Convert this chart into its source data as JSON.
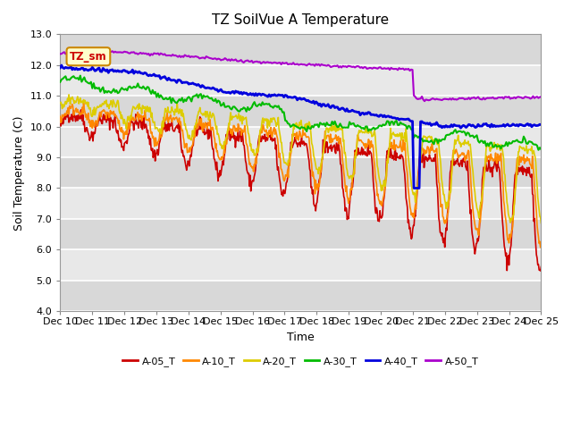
{
  "title": "TZ SoilVue A Temperature",
  "xlabel": "Time",
  "ylabel": "Soil Temperature (C)",
  "ylim": [
    4.0,
    13.0
  ],
  "yticks": [
    4.0,
    5.0,
    6.0,
    7.0,
    8.0,
    9.0,
    10.0,
    11.0,
    12.0,
    13.0
  ],
  "xtick_labels": [
    "Dec 10",
    "Dec 11",
    "Dec 12",
    "Dec 13",
    "Dec 14",
    "Dec 15",
    "Dec 16",
    "Dec 17",
    "Dec 18",
    "Dec 19",
    "Dec 20",
    "Dec 21",
    "Dec 22",
    "Dec 23",
    "Dec 24",
    "Dec 25"
  ],
  "series": {
    "A-05_T": {
      "color": "#cc0000",
      "linewidth": 1.2
    },
    "A-10_T": {
      "color": "#ff8800",
      "linewidth": 1.2
    },
    "A-20_T": {
      "color": "#ddcc00",
      "linewidth": 1.2
    },
    "A-30_T": {
      "color": "#00bb00",
      "linewidth": 1.5
    },
    "A-40_T": {
      "color": "#0000dd",
      "linewidth": 2.0
    },
    "A-50_T": {
      "color": "#aa00cc",
      "linewidth": 1.5
    }
  },
  "legend_entries": [
    "A-05_T",
    "A-10_T",
    "A-20_T",
    "A-30_T",
    "A-40_T",
    "A-50_T"
  ],
  "legend_colors": [
    "#cc0000",
    "#ff8800",
    "#ddcc00",
    "#00bb00",
    "#0000dd",
    "#aa00cc"
  ],
  "bg_color": "#ffffff",
  "plot_bg_color": "#e8e8e8",
  "label_box_text": "TZ_sm",
  "label_box_facecolor": "#ffffcc",
  "label_box_edgecolor": "#cc8800",
  "grid_color": "#ffffff"
}
